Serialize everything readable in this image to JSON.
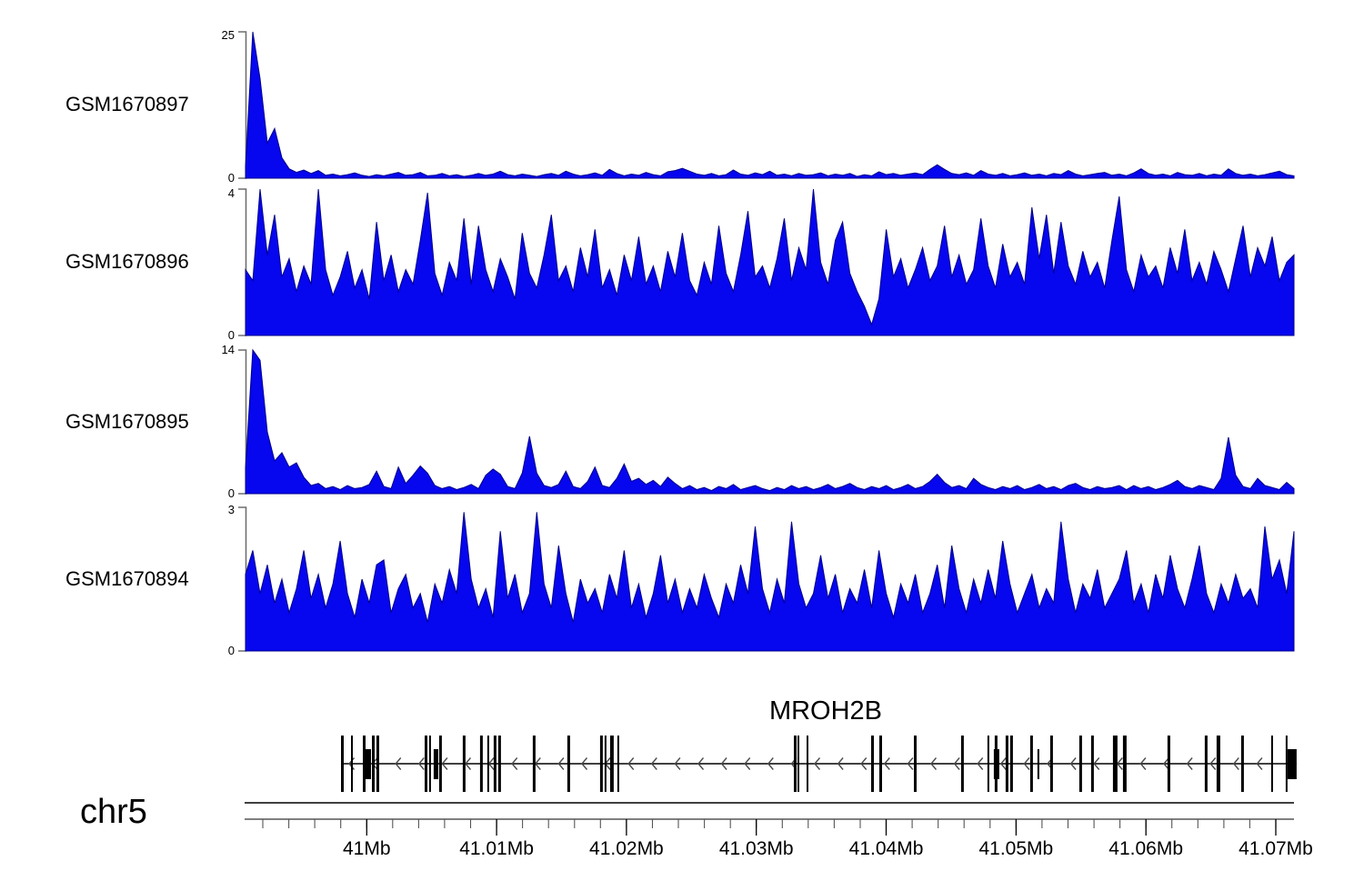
{
  "axis": {
    "chromosome": "chr5",
    "start_mb": 40.9906,
    "end_mb": 41.0714,
    "unit": "Mb",
    "minor_tick_step_mb": 0.002,
    "minor_tick_start_mb": 40.992,
    "major_ticks": [
      {
        "mb": 41.0,
        "label": "41Mb"
      },
      {
        "mb": 41.01,
        "label": "41.01Mb"
      },
      {
        "mb": 41.02,
        "label": "41.02Mb"
      },
      {
        "mb": 41.03,
        "label": "41.03Mb"
      },
      {
        "mb": 41.04,
        "label": "41.04Mb"
      },
      {
        "mb": 41.05,
        "label": "41.05Mb"
      },
      {
        "mb": 41.06,
        "label": "41.06Mb"
      },
      {
        "mb": 41.07,
        "label": "41.07Mb"
      }
    ]
  },
  "gene": {
    "name": "MROH2B",
    "strand_direction": "left",
    "line_start_mb": 40.99802,
    "line_end_mb": 41.0716,
    "exons": [
      {
        "s": 40.99802,
        "e": 40.99823,
        "h": "t"
      },
      {
        "s": 40.99879,
        "e": 40.99893,
        "h": "t"
      },
      {
        "s": 40.9997,
        "e": 40.99991,
        "h": "t"
      },
      {
        "s": 40.99977,
        "e": 41.00033,
        "h": "s"
      },
      {
        "s": 41.0004,
        "e": 41.00061,
        "h": "t"
      },
      {
        "s": 41.00075,
        "e": 41.00096,
        "h": "t"
      },
      {
        "s": 41.00446,
        "e": 41.00467,
        "h": "t"
      },
      {
        "s": 41.00481,
        "e": 41.00495,
        "h": "t"
      },
      {
        "s": 41.00516,
        "e": 41.00551,
        "h": "s"
      },
      {
        "s": 41.00558,
        "e": 41.00579,
        "h": "t"
      },
      {
        "s": 41.0074,
        "e": 41.00761,
        "h": "t"
      },
      {
        "s": 41.00873,
        "e": 41.00894,
        "h": "t"
      },
      {
        "s": 41.00929,
        "e": 41.00943,
        "h": "t"
      },
      {
        "s": 41.00978,
        "e": 41.00999,
        "h": "t"
      },
      {
        "s": 41.01013,
        "e": 41.01034,
        "h": "t"
      },
      {
        "s": 41.01279,
        "e": 41.013,
        "h": "t"
      },
      {
        "s": 41.01545,
        "e": 41.01566,
        "h": "t"
      },
      {
        "s": 41.01797,
        "e": 41.01818,
        "h": "t"
      },
      {
        "s": 41.01832,
        "e": 41.01846,
        "h": "t"
      },
      {
        "s": 41.01874,
        "e": 41.01902,
        "h": "t"
      },
      {
        "s": 41.0193,
        "e": 41.01944,
        "h": "t"
      },
      {
        "s": 41.03289,
        "e": 41.0331,
        "h": "t"
      },
      {
        "s": 41.03317,
        "e": 41.03331,
        "h": "t"
      },
      {
        "s": 41.03387,
        "e": 41.03401,
        "h": "t"
      },
      {
        "s": 41.03884,
        "e": 41.03905,
        "h": "t"
      },
      {
        "s": 41.03947,
        "e": 41.03968,
        "h": "t"
      },
      {
        "s": 41.04213,
        "e": 41.04234,
        "h": "t"
      },
      {
        "s": 41.04577,
        "e": 41.04598,
        "h": "t"
      },
      {
        "s": 41.0478,
        "e": 41.04794,
        "h": "t"
      },
      {
        "s": 41.04829,
        "e": 41.04871,
        "h": "s"
      },
      {
        "s": 41.04836,
        "e": 41.04857,
        "h": "t"
      },
      {
        "s": 41.0492,
        "e": 41.04941,
        "h": "t"
      },
      {
        "s": 41.04955,
        "e": 41.04976,
        "h": "t"
      },
      {
        "s": 41.05109,
        "e": 41.0513,
        "h": "t"
      },
      {
        "s": 41.05165,
        "e": 41.05179,
        "h": "s"
      },
      {
        "s": 41.05263,
        "e": 41.05284,
        "h": "t"
      },
      {
        "s": 41.05487,
        "e": 41.05508,
        "h": "t"
      },
      {
        "s": 41.05578,
        "e": 41.05599,
        "h": "t"
      },
      {
        "s": 41.05746,
        "e": 41.05781,
        "h": "t"
      },
      {
        "s": 41.05823,
        "e": 41.05851,
        "h": "t"
      },
      {
        "s": 41.06166,
        "e": 41.06187,
        "h": "t"
      },
      {
        "s": 41.06453,
        "e": 41.06474,
        "h": "t"
      },
      {
        "s": 41.06544,
        "e": 41.06572,
        "h": "t"
      },
      {
        "s": 41.06733,
        "e": 41.06754,
        "h": "t"
      },
      {
        "s": 41.06964,
        "e": 41.06978,
        "h": "t"
      },
      {
        "s": 41.07076,
        "e": 41.0709,
        "h": "t"
      },
      {
        "s": 41.0709,
        "e": 41.0716,
        "h": "s"
      }
    ]
  },
  "colors": {
    "signal_fill": "#0606ef",
    "signal_stroke": "#00008b",
    "axis_line": "#000000",
    "bracket": "#6e6e6e",
    "chevron": "#4a4a4a",
    "exon": "#000000"
  },
  "chart_data": [
    {
      "type": "area",
      "name": "GSM1670897",
      "ymin": 0,
      "ymax": 25,
      "x_range_mb": [
        40.9906,
        41.0714
      ],
      "values": [
        2,
        25,
        17,
        6,
        8.5,
        3.5,
        1.6,
        1,
        1.4,
        0.8,
        1.3,
        0.5,
        0.7,
        0.4,
        0.6,
        0.9,
        0.5,
        0.3,
        0.6,
        0.4,
        0.7,
        1,
        0.5,
        0.6,
        1,
        0.4,
        0.5,
        0.8,
        0.4,
        0.6,
        0.3,
        0.5,
        0.8,
        0.5,
        0.7,
        1.2,
        0.6,
        0.4,
        0.7,
        0.5,
        0.3,
        0.6,
        0.8,
        0.5,
        1.2,
        0.7,
        0.4,
        0.6,
        0.9,
        0.5,
        1.5,
        0.8,
        0.4,
        0.7,
        0.5,
        1,
        0.6,
        0.4,
        1.1,
        1.3,
        1.7,
        1.2,
        0.7,
        0.5,
        0.8,
        0.4,
        0.6,
        1.4,
        0.7,
        0.5,
        0.9,
        0.6,
        1.2,
        0.5,
        0.7,
        0.4,
        0.8,
        0.5,
        0.6,
        0.9,
        0.4,
        0.7,
        0.5,
        0.8,
        0.3,
        0.6,
        0.4,
        1.1,
        0.6,
        0.8,
        0.5,
        0.7,
        0.9,
        0.6,
        1.5,
        2.3,
        1.5,
        0.8,
        0.6,
        0.9,
        0.5,
        1.3,
        0.7,
        0.5,
        0.8,
        0.4,
        0.6,
        0.9,
        0.5,
        0.7,
        0.4,
        0.8,
        0.6,
        1.3,
        0.7,
        0.4,
        0.6,
        0.8,
        1,
        0.5,
        0.7,
        0.4,
        0.9,
        1.6,
        0.8,
        0.5,
        0.7,
        0.4,
        1,
        0.6,
        0.5,
        0.8,
        0.4,
        0.7,
        0.5,
        1.6,
        0.8,
        0.5,
        0.7,
        0.4,
        0.6,
        0.9,
        1.2,
        0.6,
        0.4
      ]
    },
    {
      "type": "area",
      "name": "GSM1670896",
      "ymin": 0,
      "ymax": 4,
      "x_range_mb": [
        40.9906,
        41.0714
      ],
      "values": [
        1.8,
        1.5,
        4,
        2.2,
        3.3,
        1.6,
        2.1,
        1.2,
        1.9,
        1.4,
        4,
        1.8,
        1.1,
        1.6,
        2.3,
        1.3,
        1.8,
        1,
        3.1,
        1.5,
        2.2,
        1.2,
        1.8,
        1.4,
        2.6,
        3.9,
        1.7,
        1.1,
        2,
        1.5,
        3.2,
        1.4,
        3,
        1.8,
        1.2,
        2.1,
        1.6,
        1,
        2.8,
        1.7,
        1.3,
        2.2,
        3.3,
        1.5,
        1.9,
        1.2,
        2.4,
        1.6,
        2.9,
        1.3,
        1.8,
        1.1,
        2.2,
        1.5,
        2.7,
        1.4,
        1.9,
        1.2,
        2.3,
        1.6,
        2.8,
        1.5,
        1.1,
        2,
        1.4,
        3,
        1.7,
        1.2,
        2.2,
        3.4,
        1.6,
        1.9,
        1.3,
        2.1,
        3.2,
        1.5,
        2.4,
        1.8,
        4,
        2,
        1.4,
        2.6,
        3.1,
        1.7,
        1.2,
        0.8,
        0.3,
        1,
        2.9,
        1.6,
        2.1,
        1.3,
        1.8,
        2.4,
        1.5,
        1.9,
        3,
        1.6,
        2.2,
        1.4,
        1.8,
        3.2,
        1.9,
        1.3,
        2.5,
        1.6,
        2,
        1.4,
        3.5,
        2.1,
        3.3,
        1.7,
        3.1,
        1.9,
        1.4,
        2.3,
        1.6,
        2,
        1.3,
        2.6,
        3.8,
        1.8,
        1.2,
        2.2,
        1.6,
        1.9,
        1.3,
        2.4,
        1.7,
        2.9,
        1.5,
        2,
        1.4,
        2.3,
        1.8,
        1.2,
        2.1,
        3,
        1.6,
        2.4,
        1.9,
        2.7,
        1.5,
        2,
        2.2
      ]
    },
    {
      "type": "area",
      "name": "GSM1670895",
      "ymin": 0,
      "ymax": 14,
      "x_range_mb": [
        40.9906,
        41.0714
      ],
      "values": [
        2.5,
        14,
        13,
        6,
        3.2,
        4,
        2.6,
        3,
        1.6,
        0.8,
        1,
        0.5,
        0.7,
        0.4,
        0.8,
        0.5,
        0.6,
        0.9,
        2.2,
        0.7,
        0.5,
        2.6,
        1,
        1.8,
        2.7,
        2,
        0.8,
        0.5,
        0.7,
        0.4,
        0.6,
        0.9,
        0.5,
        1.8,
        2.4,
        1.9,
        0.7,
        0.5,
        2,
        5.6,
        2,
        0.8,
        0.6,
        0.9,
        2.2,
        0.7,
        0.5,
        1.2,
        2.6,
        0.8,
        0.6,
        1.5,
        2.9,
        1.2,
        1.5,
        0.9,
        1.3,
        0.7,
        1.6,
        1,
        0.5,
        0.8,
        0.4,
        0.6,
        0.3,
        0.7,
        0.5,
        0.9,
        0.4,
        0.6,
        0.8,
        0.5,
        0.3,
        0.6,
        0.4,
        0.8,
        0.5,
        0.7,
        0.4,
        0.6,
        0.9,
        0.5,
        0.7,
        1,
        0.6,
        0.4,
        0.7,
        0.5,
        0.8,
        0.4,
        0.6,
        0.9,
        0.5,
        0.7,
        1.2,
        1.9,
        1.1,
        0.6,
        0.8,
        0.5,
        1.5,
        0.9,
        0.6,
        0.4,
        0.7,
        0.5,
        0.8,
        0.4,
        0.6,
        0.9,
        0.5,
        0.7,
        0.4,
        0.8,
        1,
        0.6,
        0.4,
        0.7,
        0.5,
        0.6,
        0.8,
        0.4,
        0.8,
        0.5,
        0.7,
        0.4,
        0.6,
        0.9,
        1.3,
        0.7,
        0.5,
        0.8,
        0.6,
        0.4,
        1.5,
        5.5,
        1.8,
        0.7,
        0.5,
        1.5,
        0.8,
        0.6,
        0.4,
        1.1,
        0.5
      ]
    },
    {
      "type": "area",
      "name": "GSM1670894",
      "ymin": 0,
      "ymax": 3,
      "x_range_mb": [
        40.9906,
        41.0714
      ],
      "values": [
        1.6,
        2.1,
        1.2,
        1.8,
        1,
        1.5,
        0.8,
        1.3,
        2.1,
        1.1,
        1.6,
        0.9,
        1.4,
        2.3,
        1.2,
        0.7,
        1.5,
        1,
        1.8,
        1.9,
        0.8,
        1.3,
        1.6,
        0.9,
        1.2,
        0.6,
        1.4,
        1,
        1.7,
        1.2,
        2.9,
        1.5,
        0.9,
        1.3,
        0.7,
        2.5,
        1.1,
        1.6,
        0.8,
        1.2,
        2.9,
        1.4,
        0.9,
        2.2,
        1.2,
        0.6,
        1.5,
        1,
        1.3,
        0.8,
        1.6,
        1.1,
        2.1,
        0.9,
        1.4,
        0.7,
        1.2,
        2,
        1,
        1.5,
        0.8,
        1.3,
        0.9,
        1.6,
        1.1,
        0.7,
        1.4,
        1,
        1.8,
        1.2,
        2.6,
        1.3,
        0.8,
        1.5,
        1,
        2.7,
        1.4,
        0.9,
        1.2,
        2,
        1.1,
        1.6,
        0.8,
        1.3,
        1,
        1.7,
        0.9,
        2.1,
        1.2,
        0.7,
        1.4,
        1,
        1.6,
        0.8,
        1.2,
        1.8,
        0.9,
        2.2,
        1.3,
        0.8,
        1.5,
        1,
        1.7,
        1.1,
        2.3,
        1.4,
        0.8,
        1.2,
        1.6,
        0.9,
        1.3,
        1,
        2.7,
        1.5,
        0.8,
        1.4,
        1.1,
        1.7,
        0.9,
        1.2,
        1.5,
        2.1,
        1,
        1.4,
        0.8,
        1.6,
        1.1,
        2,
        1.3,
        0.9,
        1.5,
        2.2,
        1.2,
        0.8,
        1.4,
        1,
        1.6,
        1.1,
        1.3,
        0.9,
        2.6,
        1.5,
        1.9,
        1.2,
        2.5
      ]
    }
  ]
}
